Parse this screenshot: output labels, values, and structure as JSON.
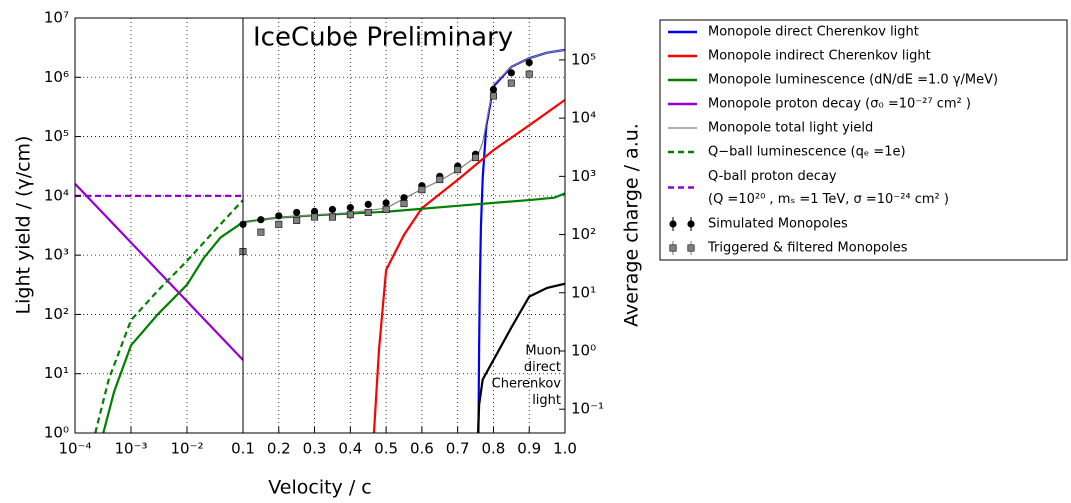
{
  "chart_data": {
    "type": "line",
    "title": "IceCube Preliminary",
    "title_color": "#ff0000",
    "xlabel": "Velocity / c",
    "ylabel": "Light yield / (γ/cm)",
    "y2label": "Average charge / a.u.",
    "xscale": [
      "log",
      "linear"
    ],
    "xbreak": 0.1,
    "xlim": [
      0.0001,
      1
    ],
    "xticks": [
      {
        "value": 0.0001,
        "label": "10⁻⁴"
      },
      {
        "value": 0.001,
        "label": "10⁻³"
      },
      {
        "value": 0.01,
        "label": "10⁻²"
      },
      0.1,
      0.2,
      0.3,
      0.4,
      0.5,
      0.6,
      0.7,
      0.8,
      0.9,
      {
        "value": 1,
        "label": "1.0"
      }
    ],
    "yscale": "log",
    "ylim": [
      1,
      10000000
    ],
    "yticks": [
      {
        "value": 1,
        "label": "10⁰"
      },
      {
        "value": 10,
        "label": "10¹"
      },
      {
        "value": 100,
        "label": "10²"
      },
      {
        "value": 1000,
        "label": "10³"
      },
      {
        "value": 10000,
        "label": "10⁴"
      },
      {
        "value": 100000,
        "label": "10⁵"
      },
      {
        "value": 1000000,
        "label": "10⁶"
      },
      {
        "value": 10000000,
        "label": "10⁷"
      }
    ],
    "y2scale": "log",
    "y2lim": [
      0.039,
      525000
    ],
    "y2ticks": [
      {
        "value": 0.1,
        "label": "10⁻¹"
      },
      {
        "value": 1,
        "label": "10⁰"
      },
      {
        "value": 10,
        "label": "10¹"
      },
      {
        "value": 100,
        "label": "10²"
      },
      {
        "value": 1000,
        "label": "10³"
      },
      {
        "value": 10000,
        "label": "10⁴"
      },
      {
        "value": 100000,
        "label": "10⁵"
      }
    ],
    "grid": true,
    "legend": "outside-right",
    "annotations": [
      {
        "lines": [
          "Muon",
          "direct",
          "Cherenkov",
          "light"
        ]
      }
    ],
    "series": [
      {
        "name": "Monopole direct Cherenkov light",
        "color": "#0000ff",
        "x": [
          0.758,
          0.76,
          0.762,
          0.765,
          0.77,
          0.78,
          0.8,
          0.85,
          0.9,
          0.95,
          1.0
        ],
        "values": [
          1,
          30,
          300,
          3000,
          20000,
          150000,
          700000,
          1500000,
          2100000,
          2600000,
          2900000
        ]
      },
      {
        "name": "Monopole indirect Cherenkov light",
        "color": "#ff0000",
        "x": [
          0.466,
          0.48,
          0.5,
          0.55,
          0.6,
          0.7,
          0.8,
          0.9,
          1.0
        ],
        "values": [
          1,
          25,
          560,
          2200,
          6200,
          18600,
          59000,
          155000,
          415000
        ]
      },
      {
        "name": "Monopole luminescence (dN/dE =1.0 γ/MeV)",
        "color": "#008000",
        "x": [
          0.00032,
          0.0005,
          0.001,
          0.003,
          0.01,
          0.02,
          0.04,
          0.1,
          0.2,
          0.3,
          0.5,
          0.7,
          0.9,
          0.97,
          1.0
        ],
        "values": [
          1,
          5,
          30,
          100,
          316,
          900,
          2000,
          3600,
          4300,
          4700,
          5400,
          6800,
          8500,
          9300,
          11000
        ]
      },
      {
        "name": "Monopole proton decay (σ₀ =10⁻²⁷  cm² )",
        "color": "#9400d3",
        "x": [
          0.0001,
          0.1
        ],
        "values": [
          16000,
          17
        ]
      },
      {
        "name": "Monopole total light yield",
        "color": "#808080",
        "x": [
          0.1,
          0.2,
          0.3,
          0.4,
          0.5,
          0.55,
          0.6,
          0.65,
          0.7,
          0.75,
          0.76,
          0.77,
          0.8,
          0.85,
          0.9,
          0.95,
          1.0
        ],
        "values": [
          3500,
          4300,
          4800,
          5200,
          6200,
          9000,
          13000,
          18000,
          27000,
          45000,
          55000,
          80000,
          750000,
          1500000,
          2100000,
          2600000,
          2900000
        ]
      },
      {
        "name": "Q−ball luminescence (qₑ =1e)",
        "color": "#008000",
        "dash": true,
        "x": [
          0.00023,
          0.0004,
          0.001,
          0.003,
          0.01,
          0.03,
          0.1
        ],
        "values": [
          1,
          8,
          80,
          250,
          800,
          2500,
          8500
        ]
      },
      {
        "name": "Q-ball proton decay (Q =10²⁰ , mₛ =1 TeV, σ =10⁻²⁴  cm² )",
        "color": "#9400d3",
        "dash": true,
        "x": [
          0.0001,
          0.1
        ],
        "values": [
          10000,
          10000
        ]
      },
      {
        "name": "Simulated Monopoles",
        "color": "#000000",
        "marker": "circle",
        "axis": "y2",
        "x": [
          0.1,
          0.15,
          0.2,
          0.25,
          0.3,
          0.35,
          0.4,
          0.45,
          0.5,
          0.55,
          0.6,
          0.65,
          0.7,
          0.75,
          0.8,
          0.85,
          0.9
        ],
        "values": [
          150,
          180,
          210,
          240,
          250,
          270,
          290,
          330,
          350,
          430,
          690,
          1000,
          1500,
          2400,
          31000,
          60000,
          90000
        ]
      },
      {
        "name": "Triggered & filtered Monopoles",
        "color": "#808080",
        "marker": "square",
        "axis": "y2",
        "x": [
          0.1,
          0.15,
          0.2,
          0.25,
          0.3,
          0.35,
          0.4,
          0.45,
          0.5,
          0.55,
          0.6,
          0.65,
          0.7,
          0.75,
          0.8,
          0.85,
          0.9
        ],
        "values": [
          51,
          110,
          150,
          175,
          200,
          200,
          220,
          240,
          270,
          340,
          590,
          880,
          1300,
          2100,
          24000,
          40000,
          57000
        ]
      },
      {
        "color": "#000000",
        "x": [
          0.757,
          0.76,
          0.77,
          0.8,
          0.85,
          0.9,
          0.95,
          1.0
        ],
        "values": [
          1,
          3,
          8,
          17,
          60,
          200,
          280,
          330
        ]
      }
    ]
  }
}
